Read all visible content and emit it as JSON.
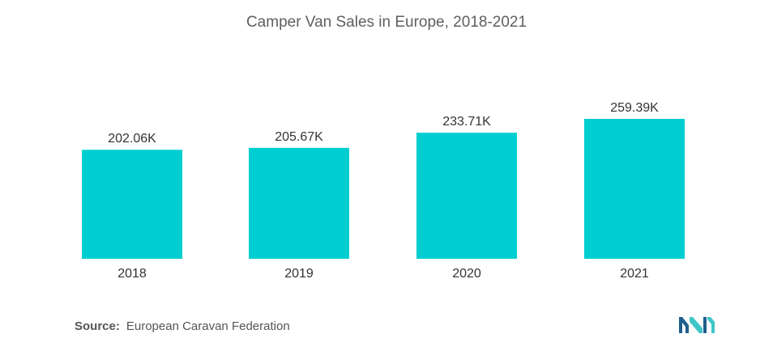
{
  "title": "Camper Van Sales in Europe, 2018-2021",
  "source": {
    "label": "Source:",
    "text": "European Caravan Federation"
  },
  "colors": {
    "bar": "#00CED1",
    "text": "#333333",
    "logo_dark": "#1E5F8C",
    "logo_light": "#3FC6C8"
  },
  "chart_data": {
    "type": "bar",
    "title": "Camper Van Sales in Europe, 2018-2021",
    "categories": [
      "2018",
      "2019",
      "2020",
      "2021"
    ],
    "values": [
      202.06,
      205.67,
      233.71,
      259.39
    ],
    "data_labels": [
      "202.06K",
      "205.67K",
      "233.71K",
      "259.39K"
    ],
    "unit": "K",
    "xlabel": "",
    "ylabel": "",
    "ylim": [
      0,
      259.39
    ],
    "grid": false,
    "legend": "none"
  }
}
